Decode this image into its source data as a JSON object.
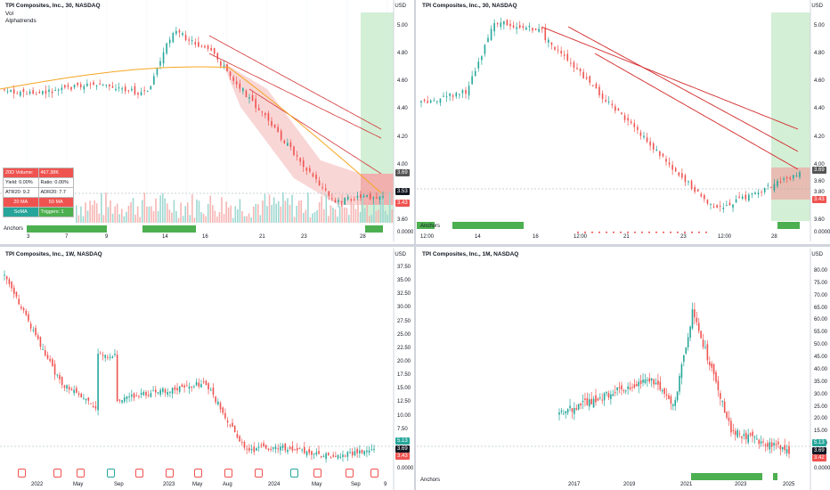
{
  "panels": {
    "p1": {
      "title": "TPI Composites, Inc., 30, NASDAQ",
      "sub1": "Vol",
      "sub2": "Alphatrends",
      "currency": "USD",
      "y_labels": [
        "5.00",
        "4.80",
        "4.60",
        "4.40",
        "4.20",
        "4.00",
        "3.80",
        "3.60",
        "0.0000"
      ],
      "x_labels": [
        "3",
        "7",
        "9",
        "14",
        "16",
        "21",
        "23",
        "28"
      ],
      "price_labels": {
        "high": "3.69",
        "last": "3.53",
        "low": "3.43"
      },
      "anchors": "Anchors",
      "table": {
        "r1": [
          "20D Volume:",
          "467.38K"
        ],
        "r2": [
          "Yield: 0.00%",
          "Ratio: 0.00%"
        ],
        "r3": [
          "ATR20: 9.2",
          "ADR20: 7.7"
        ],
        "r4": [
          "20 MA",
          "50 MA"
        ],
        "r5": [
          "SoMA",
          "Triggers: 1"
        ]
      }
    },
    "p2": {
      "title": "TPI Composites, Inc., 30, NASDAQ",
      "currency": "USD",
      "y_labels": [
        "5.00",
        "4.80",
        "4.60",
        "4.40",
        "4.20",
        "4.00",
        "3.80",
        "3.60",
        "0.0000"
      ],
      "x_labels": [
        "12:00",
        "14",
        "16",
        "12:00",
        "21",
        "23",
        "12:00",
        "28"
      ],
      "price_labels": {
        "high": "3.69",
        "mid": "3.60",
        "low": "3.43"
      },
      "anchors": "Anchors"
    },
    "p3": {
      "title": "TPI Composites, Inc., 1W, NASDAQ",
      "currency": "USD",
      "y_labels": [
        "37.50",
        "35.00",
        "32.50",
        "30.00",
        "27.50",
        "25.00",
        "22.50",
        "20.00",
        "17.50",
        "15.00",
        "12.50",
        "10.00",
        "7.50",
        "5.00",
        "2.50",
        "0.0000"
      ],
      "x_labels": [
        "2022",
        "May",
        "Sep",
        "2023",
        "May",
        "Aug",
        "2024",
        "May",
        "Sep",
        "9"
      ],
      "price_labels": {
        "high": "5.13",
        "mid": "3.69",
        "low": "3.43"
      },
      "earnings_markers": [
        "E",
        "E",
        "E",
        "E",
        "E",
        "E",
        "E",
        "E",
        "E",
        "E",
        "E",
        "E",
        "E",
        "E",
        "E",
        "E",
        "E"
      ]
    },
    "p4": {
      "title": "TPI Composites, Inc., 1M, NASDAQ",
      "currency": "USD",
      "y_labels": [
        "80.00",
        "75.00",
        "70.00",
        "65.00",
        "60.00",
        "55.00",
        "50.00",
        "45.00",
        "40.00",
        "35.00",
        "30.00",
        "25.00",
        "20.00",
        "15.00",
        "10.00",
        "5.00",
        "0.0000"
      ],
      "x_labels": [
        "2017",
        "2019",
        "2021",
        "2023",
        "2025"
      ],
      "price_labels": {
        "high": "5.13",
        "mid": "3.69",
        "low": "3.42"
      },
      "anchors": "Anchors"
    }
  },
  "colors": {
    "up": "#26a69a",
    "down": "#ef5350",
    "ma_red": "#d32f2f",
    "ma_orange": "#f5a623",
    "green_zone": "#c8ebcc",
    "red_zone": "#f7c4c4",
    "anchor_green": "#4caf50"
  }
}
